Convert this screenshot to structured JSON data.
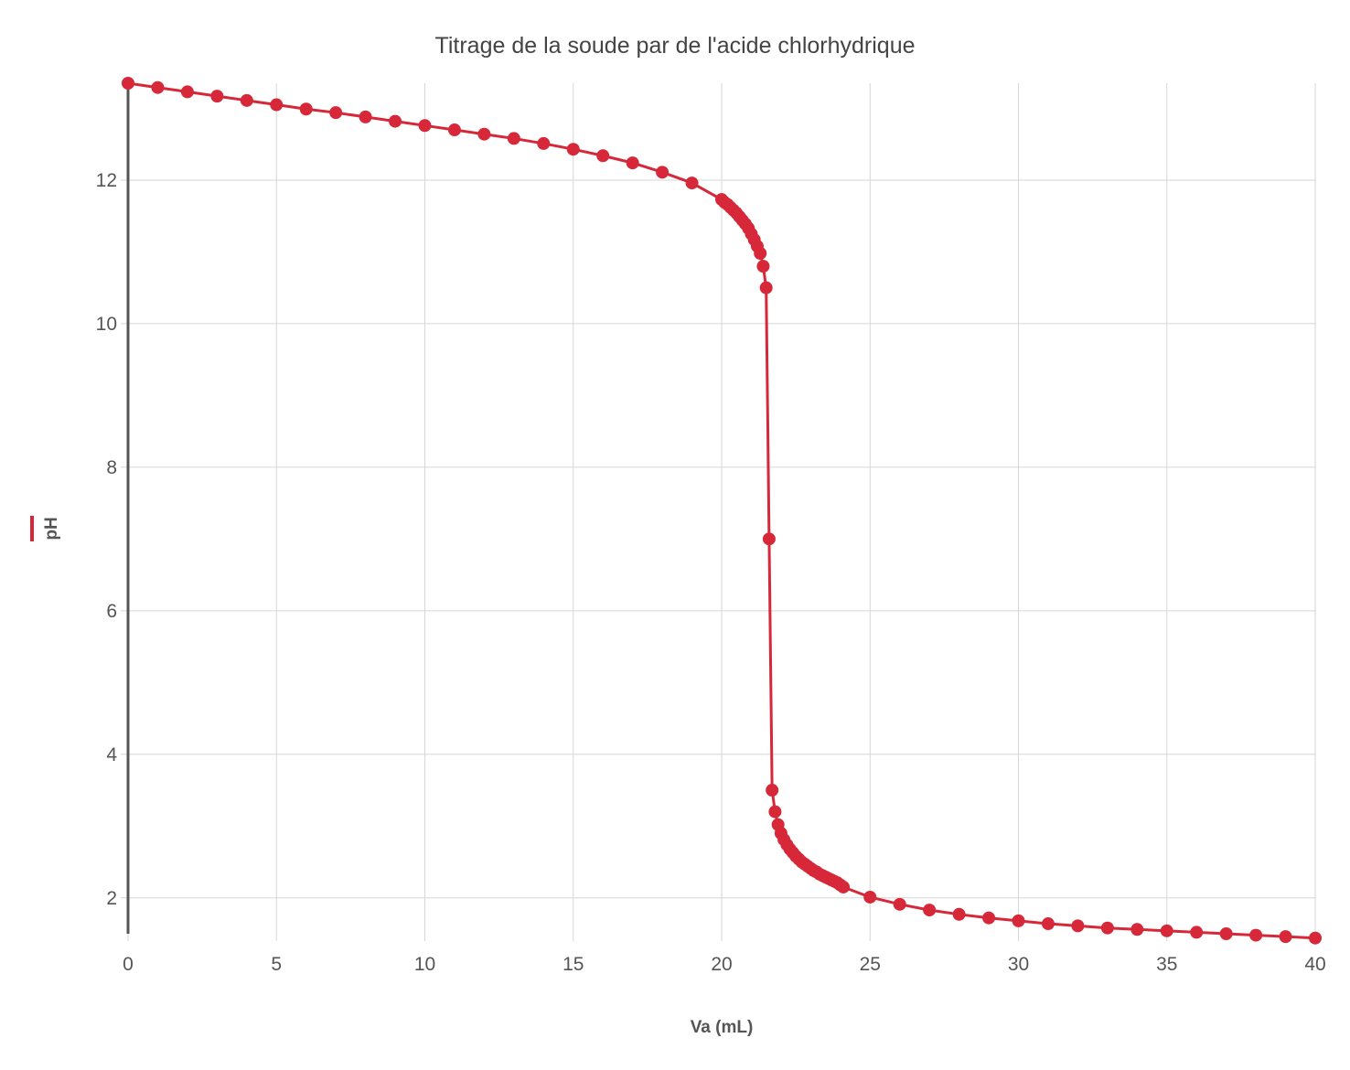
{
  "colors": {
    "series": "#d62839",
    "grid": "#d6d6d6",
    "y_axis_line": "#555555",
    "text": "#444444"
  },
  "chart_data": {
    "type": "line",
    "title": "Titrage de la soude par de l'acide chlorhydrique",
    "xlabel": "Va (mL)",
    "ylabel": "pH",
    "xlim": [
      0,
      40
    ],
    "ylim": [
      1.5,
      13.35
    ],
    "x_ticks": [
      "0",
      "5",
      "10",
      "15",
      "20",
      "25",
      "30",
      "35",
      "40"
    ],
    "y_ticks": [
      "2",
      "4",
      "6",
      "8",
      "10",
      "12"
    ],
    "grid": true,
    "legend": "left, vertical (axis title marker)",
    "series": [
      {
        "name": "pH",
        "color": "#d62839",
        "points": [
          [
            0,
            13.35
          ],
          [
            1,
            13.29
          ],
          [
            2,
            13.23
          ],
          [
            3,
            13.17
          ],
          [
            4,
            13.11
          ],
          [
            5,
            13.05
          ],
          [
            6,
            12.99
          ],
          [
            7,
            12.94
          ],
          [
            8,
            12.88
          ],
          [
            9,
            12.82
          ],
          [
            10,
            12.76
          ],
          [
            11,
            12.7
          ],
          [
            12,
            12.64
          ],
          [
            13,
            12.58
          ],
          [
            14,
            12.51
          ],
          [
            15,
            12.43
          ],
          [
            16,
            12.34
          ],
          [
            17,
            12.24
          ],
          [
            18,
            12.11
          ],
          [
            19,
            11.96
          ],
          [
            20,
            11.73
          ],
          [
            20.1,
            11.69
          ],
          [
            20.2,
            11.66
          ],
          [
            20.3,
            11.62
          ],
          [
            20.4,
            11.58
          ],
          [
            20.5,
            11.54
          ],
          [
            20.6,
            11.49
          ],
          [
            20.7,
            11.44
          ],
          [
            20.8,
            11.39
          ],
          [
            20.9,
            11.33
          ],
          [
            21.0,
            11.25
          ],
          [
            21.1,
            11.17
          ],
          [
            21.2,
            11.08
          ],
          [
            21.3,
            10.98
          ],
          [
            21.4,
            10.8
          ],
          [
            21.5,
            10.5
          ],
          [
            21.6,
            7.0
          ],
          [
            21.7,
            3.5
          ],
          [
            21.8,
            3.2
          ],
          [
            21.9,
            3.02
          ],
          [
            22.0,
            2.9
          ],
          [
            22.1,
            2.81
          ],
          [
            22.2,
            2.74
          ],
          [
            22.3,
            2.68
          ],
          [
            22.4,
            2.63
          ],
          [
            22.5,
            2.58
          ],
          [
            22.6,
            2.54
          ],
          [
            22.7,
            2.5
          ],
          [
            22.8,
            2.47
          ],
          [
            22.9,
            2.44
          ],
          [
            23.0,
            2.41
          ],
          [
            23.1,
            2.38
          ],
          [
            23.2,
            2.36
          ],
          [
            23.3,
            2.33
          ],
          [
            23.4,
            2.31
          ],
          [
            23.5,
            2.29
          ],
          [
            23.6,
            2.27
          ],
          [
            23.7,
            2.25
          ],
          [
            23.8,
            2.23
          ],
          [
            23.9,
            2.21
          ],
          [
            24.0,
            2.18
          ],
          [
            24.1,
            2.15
          ],
          [
            25,
            2.01
          ],
          [
            26,
            1.91
          ],
          [
            27,
            1.83
          ],
          [
            28,
            1.77
          ],
          [
            29,
            1.72
          ],
          [
            30,
            1.68
          ],
          [
            31,
            1.64
          ],
          [
            32,
            1.61
          ],
          [
            33,
            1.58
          ],
          [
            34,
            1.56
          ],
          [
            35,
            1.54
          ],
          [
            36,
            1.52
          ],
          [
            37,
            1.5
          ],
          [
            38,
            1.48
          ],
          [
            39,
            1.46
          ],
          [
            40,
            1.44
          ]
        ]
      }
    ]
  }
}
